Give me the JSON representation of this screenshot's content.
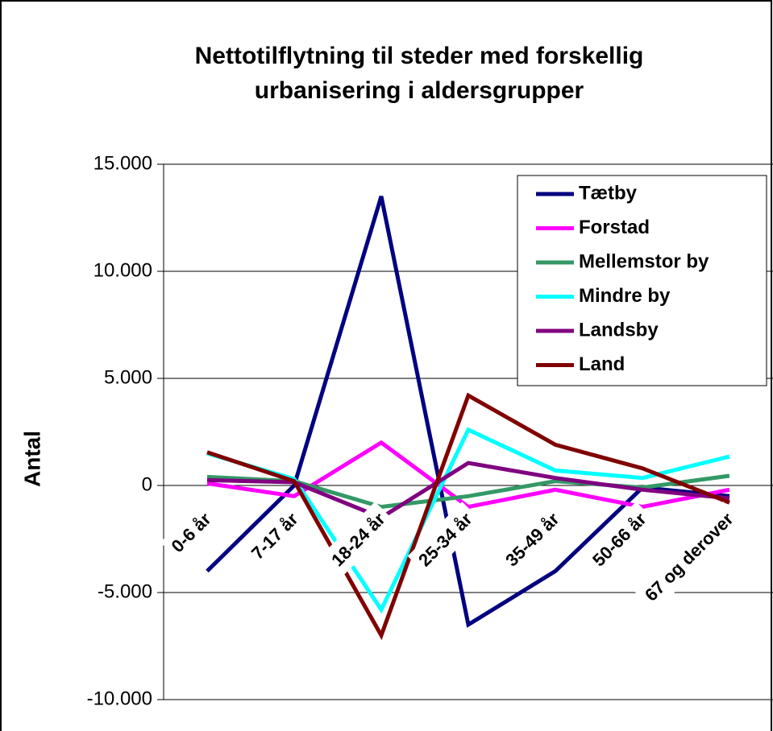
{
  "chart_data": {
    "type": "line",
    "title": "Nettotilflytning til steder med forskellig urbanisering i aldersgrupper",
    "y_label": "Antal",
    "categories": [
      "0-6 år",
      "7-17 år",
      "18-24 år",
      "25-34 år",
      "35-49 år",
      "50-66 år",
      "67 og derover"
    ],
    "series": [
      {
        "name": "Tætby",
        "color": "#000080",
        "values": [
          -4000,
          0,
          13500,
          -6500,
          -4000,
          -100,
          -500
        ]
      },
      {
        "name": "Forstad",
        "color": "#ff00ff",
        "values": [
          100,
          -500,
          2000,
          -1000,
          -200,
          -1000,
          -200
        ]
      },
      {
        "name": "Mellemstor by",
        "color": "#339966",
        "values": [
          400,
          200,
          -1000,
          -500,
          200,
          -100,
          450
        ]
      },
      {
        "name": "Mindre by",
        "color": "#00ffff",
        "values": [
          1500,
          300,
          -5800,
          2600,
          700,
          350,
          1350
        ]
      },
      {
        "name": "Landsby",
        "color": "#800080",
        "values": [
          250,
          150,
          -1500,
          1050,
          350,
          -200,
          -600
        ]
      },
      {
        "name": "Land",
        "color": "#800000",
        "values": [
          1550,
          200,
          -7000,
          4200,
          1900,
          800,
          -800
        ]
      }
    ],
    "ylim": [
      -10000,
      15000
    ],
    "yticks": [
      {
        "value": -10000,
        "label": "-10.000"
      },
      {
        "value": -5000,
        "label": "-5.000"
      },
      0,
      {
        "value": 5000,
        "label": "5.000"
      },
      {
        "value": 10000,
        "label": "10.000"
      },
      {
        "value": 15000,
        "label": "15.000"
      }
    ],
    "grid": true,
    "legend": "upper right"
  }
}
